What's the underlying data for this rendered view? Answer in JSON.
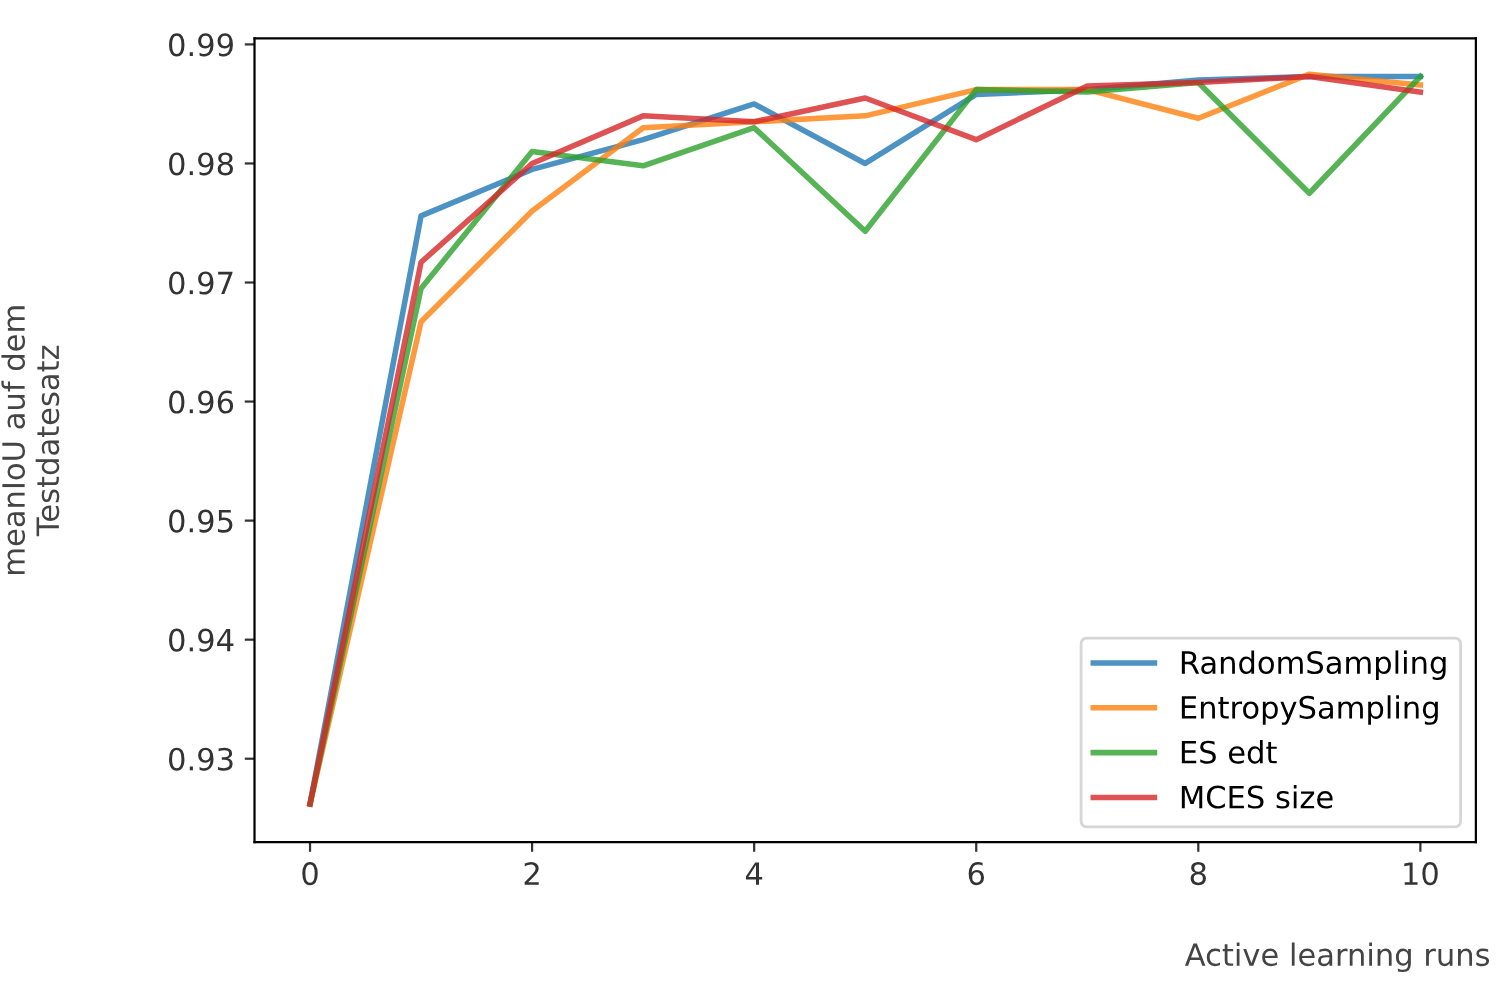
{
  "chart_data": {
    "type": "line",
    "xlabel": "Active learning runs",
    "ylabel": "meanIoU auf dem\nTestdatesatz",
    "x": [
      0,
      1,
      2,
      3,
      4,
      5,
      6,
      7,
      8,
      9,
      10
    ],
    "series": [
      {
        "name": "RandomSampling",
        "color": "#1f77b4",
        "values": [
          0.9262,
          0.9756,
          0.9795,
          0.982,
          0.985,
          0.98,
          0.9858,
          0.9862,
          0.987,
          0.9873,
          0.9873
        ]
      },
      {
        "name": "EntropySampling",
        "color": "#ff7f0e",
        "values": [
          0.9262,
          0.9667,
          0.976,
          0.983,
          0.9835,
          0.984,
          0.9862,
          0.9862,
          0.9838,
          0.9875,
          0.9866
        ]
      },
      {
        "name": "ES edt",
        "color": "#2ca02c",
        "values": [
          0.9262,
          0.9695,
          0.981,
          0.9798,
          0.983,
          0.9743,
          0.9862,
          0.986,
          0.9868,
          0.9775,
          0.9873
        ]
      },
      {
        "name": "MCES size",
        "color": "#d62728",
        "values": [
          0.9262,
          0.9717,
          0.98,
          0.984,
          0.9835,
          0.9855,
          0.982,
          0.9865,
          0.9868,
          0.9873,
          0.986
        ]
      }
    ],
    "xlim": [
      -0.5,
      10.5
    ],
    "xticks": [
      0,
      2,
      4,
      6,
      8,
      10
    ],
    "ylim": [
      0.923,
      0.9905
    ],
    "yticks": [
      0.93,
      0.94,
      0.95,
      0.96,
      0.97,
      0.98,
      0.99
    ],
    "grid": false,
    "legend": "bottom right",
    "marker": "none",
    "line_style": "solid"
  }
}
